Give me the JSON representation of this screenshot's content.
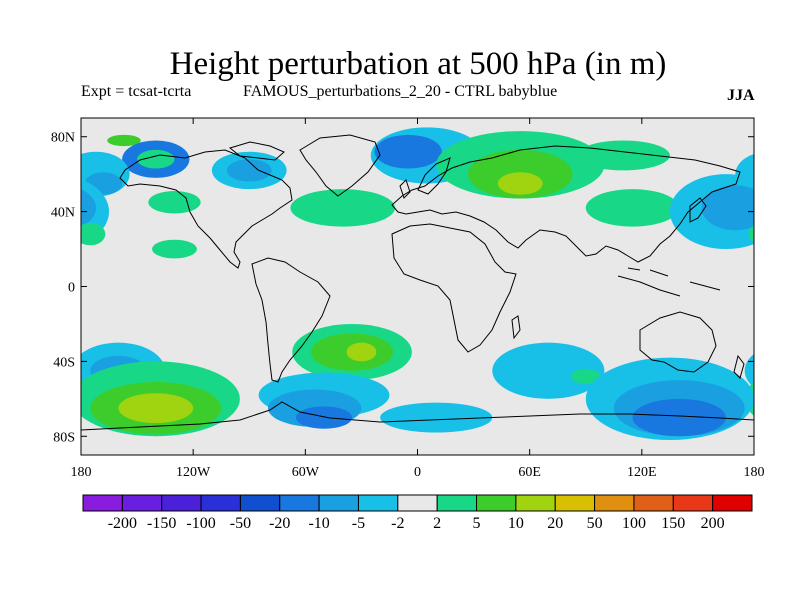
{
  "title": "Height perturbation at 500 hPa (in m)",
  "subtitle_left": "Expt = tcsat-tcrta",
  "subtitle_center": "FAMOUS_perturbations_2_20 - CTRL babyblue",
  "season": "JJA",
  "map": {
    "projection": "cylindrical-equidistant",
    "lon_range": [
      -180,
      180
    ],
    "lat_range": [
      -90,
      90
    ],
    "lat_ticks": [
      {
        "value": 80,
        "label": "80N"
      },
      {
        "value": 40,
        "label": "40N"
      },
      {
        "value": 0,
        "label": "0"
      },
      {
        "value": -40,
        "label": "40S"
      },
      {
        "value": -80,
        "label": "80S"
      }
    ],
    "lon_ticks": [
      {
        "value": -180,
        "label": "180"
      },
      {
        "value": -120,
        "label": "120W"
      },
      {
        "value": -60,
        "label": "60W"
      },
      {
        "value": 0,
        "label": "0"
      },
      {
        "value": 60,
        "label": "60E"
      },
      {
        "value": 120,
        "label": "120E"
      },
      {
        "value": 180,
        "label": "180"
      }
    ],
    "background_color": "#e8e8e8"
  },
  "colorbar": {
    "labels": [
      "-200",
      "-150",
      "-100",
      "-50",
      "-20",
      "-10",
      "-5",
      "-2",
      "2",
      "5",
      "10",
      "20",
      "50",
      "100",
      "150",
      "200"
    ],
    "colors": [
      "#8a1ce0",
      "#6a1ee0",
      "#4a20d8",
      "#2a30d8",
      "#1050d0",
      "#1878e0",
      "#1aa0e0",
      "#18c0e8",
      "#e8e8e8",
      "#18d888",
      "#3ccc2c",
      "#a0d410",
      "#d8c000",
      "#e09010",
      "#e06018",
      "#e83818",
      "#e00000"
    ]
  },
  "regions": [
    {
      "color_index": 9,
      "lon": 5,
      "lat": 70,
      "rx": 22,
      "ry": 10
    },
    {
      "color_index": 10,
      "lon": -157,
      "lat": 78,
      "rx": 9,
      "ry": 3
    },
    {
      "color_index": 5,
      "lon": -140,
      "lat": 68,
      "rx": 18,
      "ry": 10
    },
    {
      "color_index": 9,
      "lon": -140,
      "lat": 68,
      "rx": 10,
      "ry": 5
    },
    {
      "color_index": 7,
      "lon": -172,
      "lat": 60,
      "rx": 18,
      "ry": 12
    },
    {
      "color_index": 6,
      "lon": -168,
      "lat": 55,
      "rx": 10,
      "ry": 6
    },
    {
      "color_index": 9,
      "lon": -130,
      "lat": 45,
      "rx": 14,
      "ry": 6
    },
    {
      "color_index": 7,
      "lon": -90,
      "lat": 62,
      "rx": 20,
      "ry": 10
    },
    {
      "color_index": 6,
      "lon": -90,
      "lat": 62,
      "rx": 12,
      "ry": 6
    },
    {
      "color_index": 7,
      "lon": 5,
      "lat": 70,
      "rx": 30,
      "ry": 15
    },
    {
      "color_index": 5,
      "lon": -5,
      "lat": 72,
      "rx": 18,
      "ry": 9
    },
    {
      "color_index": 9,
      "lon": 55,
      "lat": 65,
      "rx": 45,
      "ry": 18
    },
    {
      "color_index": 10,
      "lon": 55,
      "lat": 60,
      "rx": 28,
      "ry": 13
    },
    {
      "color_index": 11,
      "lon": 55,
      "lat": 55,
      "rx": 12,
      "ry": 6
    },
    {
      "color_index": 9,
      "lon": -40,
      "lat": 42,
      "rx": 28,
      "ry": 10
    },
    {
      "color_index": 9,
      "lon": 115,
      "lat": 42,
      "rx": 25,
      "ry": 10
    },
    {
      "color_index": 9,
      "lon": 110,
      "lat": 70,
      "rx": 25,
      "ry": 8
    },
    {
      "color_index": 7,
      "lon": 165,
      "lat": 40,
      "rx": 30,
      "ry": 20
    },
    {
      "color_index": 6,
      "lon": 170,
      "lat": 42,
      "rx": 18,
      "ry": 12
    },
    {
      "color_index": 9,
      "lon": -175,
      "lat": 28,
      "rx": 8,
      "ry": 6
    },
    {
      "color_index": 9,
      "lon": -130,
      "lat": 20,
      "rx": 12,
      "ry": 5
    },
    {
      "color_index": 7,
      "lon": -160,
      "lat": -45,
      "rx": 25,
      "ry": 15
    },
    {
      "color_index": 6,
      "lon": -160,
      "lat": -45,
      "rx": 15,
      "ry": 8
    },
    {
      "color_index": 9,
      "lon": -140,
      "lat": -60,
      "rx": 45,
      "ry": 20
    },
    {
      "color_index": 10,
      "lon": -140,
      "lat": -65,
      "rx": 35,
      "ry": 14
    },
    {
      "color_index": 11,
      "lon": -140,
      "lat": -65,
      "rx": 20,
      "ry": 8
    },
    {
      "color_index": 9,
      "lon": -35,
      "lat": -35,
      "rx": 32,
      "ry": 15
    },
    {
      "color_index": 10,
      "lon": -35,
      "lat": -35,
      "rx": 22,
      "ry": 10
    },
    {
      "color_index": 11,
      "lon": -30,
      "lat": -35,
      "rx": 8,
      "ry": 5
    },
    {
      "color_index": 7,
      "lon": -50,
      "lat": -58,
      "rx": 35,
      "ry": 12
    },
    {
      "color_index": 6,
      "lon": -55,
      "lat": -65,
      "rx": 25,
      "ry": 10
    },
    {
      "color_index": 5,
      "lon": -50,
      "lat": -70,
      "rx": 15,
      "ry": 6
    },
    {
      "color_index": 7,
      "lon": 70,
      "lat": -45,
      "rx": 30,
      "ry": 15
    },
    {
      "color_index": 9,
      "lon": 90,
      "lat": -48,
      "rx": 8,
      "ry": 4
    },
    {
      "color_index": 7,
      "lon": 135,
      "lat": -60,
      "rx": 45,
      "ry": 22
    },
    {
      "color_index": 6,
      "lon": 140,
      "lat": -65,
      "rx": 35,
      "ry": 15
    },
    {
      "color_index": 5,
      "lon": 140,
      "lat": -70,
      "rx": 25,
      "ry": 10
    },
    {
      "color_index": 7,
      "lon": 10,
      "lat": -70,
      "rx": 30,
      "ry": 8
    }
  ]
}
